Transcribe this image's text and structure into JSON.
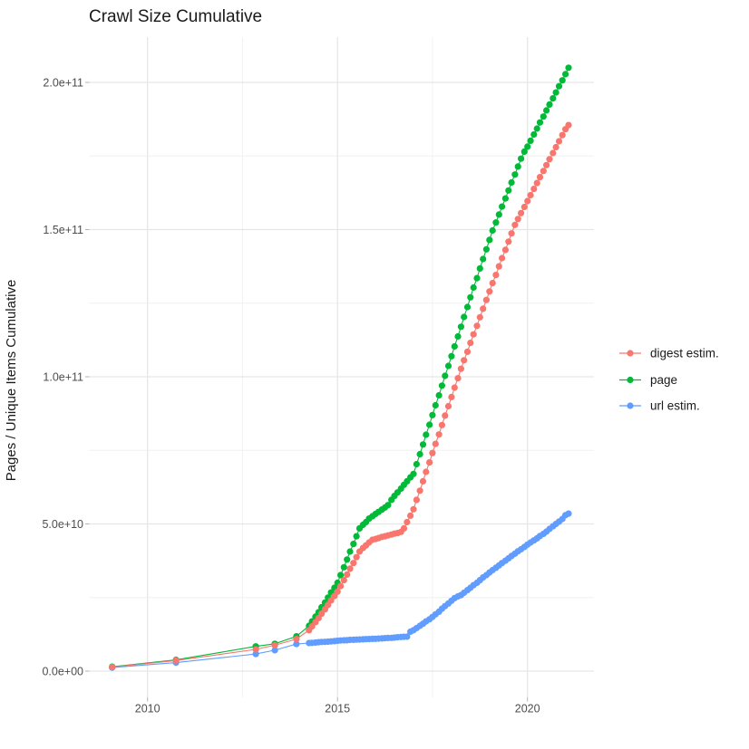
{
  "title": "Crawl Size Cumulative",
  "y_axis": {
    "title": "Pages / Unique Items Cumulative",
    "tick_labels": [
      "0.0e+00",
      "5.0e+10",
      "1.0e+11",
      "1.5e+11",
      "2.0e+11"
    ]
  },
  "x_axis": {
    "tick_labels": [
      "2010",
      "2015",
      "2020"
    ]
  },
  "legend": {
    "items": [
      {
        "label": "digest estim.",
        "color": "#F8766D"
      },
      {
        "label": "page",
        "color": "#00BA38"
      },
      {
        "label": "url estim.",
        "color": "#619CFF"
      }
    ]
  },
  "chart_data": {
    "type": "line",
    "marker": "point",
    "title": "Crawl Size Cumulative",
    "xlabel": "",
    "ylabel": "Pages / Unique Items Cumulative",
    "value_scale": 1000000000.0,
    "xlim": [
      2008.4,
      2021.8
    ],
    "ylim_1e9": [
      -10,
      215
    ],
    "grid": true,
    "legend_position": "right",
    "x_ticks": {
      "major": [
        2010,
        2015,
        2020
      ],
      "minor": [
        2012.5,
        2017.5
      ],
      "labels": [
        "2010",
        "2015",
        "2020"
      ]
    },
    "y_ticks": {
      "major_1e9": [
        0,
        50,
        100,
        150,
        200
      ],
      "minor_1e9": [
        25,
        75,
        125,
        175
      ],
      "labels": [
        "0.0e+00",
        "5.0e+10",
        "1.0e+11",
        "1.5e+11",
        "2.0e+11"
      ]
    },
    "series": [
      {
        "name": "digest estim.",
        "color": "#F8766D",
        "points_year_value1e9": [
          [
            2009.07,
            1.4
          ],
          [
            2010.75,
            3.6
          ],
          [
            2012.85,
            7.4
          ],
          [
            2013.35,
            8.8
          ],
          [
            2013.92,
            10.9
          ],
          [
            2014.25,
            13.9
          ],
          [
            2014.33,
            15.2
          ],
          [
            2014.42,
            16.6
          ],
          [
            2014.5,
            18
          ],
          [
            2014.58,
            19.5
          ],
          [
            2014.67,
            21
          ],
          [
            2014.75,
            22.5
          ],
          [
            2014.83,
            24
          ],
          [
            2014.92,
            25.5
          ],
          [
            2015.0,
            27
          ],
          [
            2015.08,
            28.9
          ],
          [
            2015.17,
            30.9
          ],
          [
            2015.25,
            32.8
          ],
          [
            2015.33,
            34.8
          ],
          [
            2015.42,
            36.7
          ],
          [
            2015.5,
            38.7
          ],
          [
            2015.58,
            40.6
          ],
          [
            2015.67,
            41.8
          ],
          [
            2015.75,
            42.7
          ],
          [
            2015.83,
            43.7
          ],
          [
            2015.92,
            44.6
          ],
          [
            2016.0,
            44.9
          ],
          [
            2016.08,
            45.2
          ],
          [
            2016.17,
            45.6
          ],
          [
            2016.25,
            45.8
          ],
          [
            2016.33,
            46.1
          ],
          [
            2016.42,
            46.4
          ],
          [
            2016.5,
            46.7
          ],
          [
            2016.58,
            46.9
          ],
          [
            2016.67,
            47.3
          ],
          [
            2016.75,
            48.5
          ],
          [
            2016.83,
            50.6
          ],
          [
            2016.92,
            52.8
          ],
          [
            2017.0,
            55
          ],
          [
            2017.08,
            58.2
          ],
          [
            2017.17,
            61.3
          ],
          [
            2017.25,
            64.5
          ],
          [
            2017.33,
            67.7
          ],
          [
            2017.42,
            70.9
          ],
          [
            2017.5,
            74.1
          ],
          [
            2017.58,
            77.2
          ],
          [
            2017.67,
            80.4
          ],
          [
            2017.75,
            83.6
          ],
          [
            2017.83,
            86.8
          ],
          [
            2017.92,
            90
          ],
          [
            2018.0,
            93.1
          ],
          [
            2018.08,
            96.3
          ],
          [
            2018.17,
            99.5
          ],
          [
            2018.25,
            102.7
          ],
          [
            2018.33,
            105.6
          ],
          [
            2018.42,
            108.5
          ],
          [
            2018.5,
            111.5
          ],
          [
            2018.58,
            114.4
          ],
          [
            2018.67,
            117.3
          ],
          [
            2018.75,
            120.2
          ],
          [
            2018.83,
            123.1
          ],
          [
            2018.92,
            126.1
          ],
          [
            2019.0,
            129
          ],
          [
            2019.08,
            131.8
          ],
          [
            2019.17,
            134.6
          ],
          [
            2019.25,
            137.5
          ],
          [
            2019.33,
            140.3
          ],
          [
            2019.42,
            143.1
          ],
          [
            2019.5,
            145.9
          ],
          [
            2019.58,
            148.7
          ],
          [
            2019.67,
            151.6
          ],
          [
            2019.75,
            153.6
          ],
          [
            2019.83,
            155.6
          ],
          [
            2019.92,
            157.7
          ],
          [
            2020.0,
            159.7
          ],
          [
            2020.08,
            161.7
          ],
          [
            2020.17,
            163.8
          ],
          [
            2020.25,
            165.8
          ],
          [
            2020.33,
            167.8
          ],
          [
            2020.42,
            169.9
          ],
          [
            2020.5,
            171.9
          ],
          [
            2020.58,
            173.9
          ],
          [
            2020.67,
            176
          ],
          [
            2020.75,
            178
          ],
          [
            2020.83,
            180
          ],
          [
            2020.92,
            182.1
          ],
          [
            2021.0,
            184.1
          ],
          [
            2021.08,
            185.5
          ]
        ]
      },
      {
        "name": "page",
        "color": "#00BA38",
        "points_year_value1e9": [
          [
            2009.07,
            1.5
          ],
          [
            2010.75,
            3.8
          ],
          [
            2012.85,
            8.4
          ],
          [
            2013.35,
            9.3
          ],
          [
            2013.92,
            11.8
          ],
          [
            2014.25,
            15.4
          ],
          [
            2014.33,
            16.9
          ],
          [
            2014.42,
            18.5
          ],
          [
            2014.5,
            20
          ],
          [
            2014.58,
            21.7
          ],
          [
            2014.67,
            23.3
          ],
          [
            2014.75,
            25
          ],
          [
            2014.83,
            26.7
          ],
          [
            2014.92,
            28.3
          ],
          [
            2015.0,
            30
          ],
          [
            2015.08,
            32.6
          ],
          [
            2015.17,
            35.3
          ],
          [
            2015.25,
            37.9
          ],
          [
            2015.33,
            40.6
          ],
          [
            2015.42,
            43.2
          ],
          [
            2015.5,
            45.8
          ],
          [
            2015.58,
            48.5
          ],
          [
            2015.67,
            49.7
          ],
          [
            2015.75,
            50.6
          ],
          [
            2015.83,
            51.8
          ],
          [
            2015.92,
            52.6
          ],
          [
            2016.0,
            53.4
          ],
          [
            2016.08,
            54.1
          ],
          [
            2016.17,
            54.9
          ],
          [
            2016.25,
            55.6
          ],
          [
            2016.33,
            56.4
          ],
          [
            2016.42,
            58.2
          ],
          [
            2016.5,
            59.5
          ],
          [
            2016.58,
            60.7
          ],
          [
            2016.67,
            62
          ],
          [
            2016.75,
            63.3
          ],
          [
            2016.83,
            64.5
          ],
          [
            2016.92,
            65.8
          ],
          [
            2017.0,
            67
          ],
          [
            2017.08,
            70.3
          ],
          [
            2017.17,
            73.7
          ],
          [
            2017.25,
            77
          ],
          [
            2017.33,
            80.3
          ],
          [
            2017.42,
            83.7
          ],
          [
            2017.5,
            87
          ],
          [
            2017.58,
            90.3
          ],
          [
            2017.67,
            93.7
          ],
          [
            2017.75,
            97
          ],
          [
            2017.83,
            100.3
          ],
          [
            2017.92,
            103.7
          ],
          [
            2018.0,
            107
          ],
          [
            2018.08,
            110.3
          ],
          [
            2018.17,
            113.7
          ],
          [
            2018.25,
            117
          ],
          [
            2018.33,
            120.3
          ],
          [
            2018.42,
            123.7
          ],
          [
            2018.5,
            127
          ],
          [
            2018.58,
            130.3
          ],
          [
            2018.67,
            133.5
          ],
          [
            2018.75,
            136.8
          ],
          [
            2018.83,
            140
          ],
          [
            2018.92,
            143.3
          ],
          [
            2019.0,
            146.5
          ],
          [
            2019.08,
            149.7
          ],
          [
            2019.17,
            152.4
          ],
          [
            2019.25,
            155.1
          ],
          [
            2019.33,
            157.8
          ],
          [
            2019.42,
            160.6
          ],
          [
            2019.5,
            163.3
          ],
          [
            2019.58,
            166
          ],
          [
            2019.67,
            168.7
          ],
          [
            2019.75,
            171.4
          ],
          [
            2019.83,
            174.1
          ],
          [
            2019.92,
            176.5
          ],
          [
            2020.0,
            178.2
          ],
          [
            2020.08,
            180.2
          ],
          [
            2020.17,
            182.3
          ],
          [
            2020.25,
            184.3
          ],
          [
            2020.33,
            186.4
          ],
          [
            2020.42,
            188.4
          ],
          [
            2020.5,
            190.5
          ],
          [
            2020.58,
            192.5
          ],
          [
            2020.67,
            194.6
          ],
          [
            2020.75,
            196.6
          ],
          [
            2020.83,
            198.7
          ],
          [
            2020.92,
            200.7
          ],
          [
            2021.0,
            202.8
          ],
          [
            2021.08,
            205
          ]
        ]
      },
      {
        "name": "url estim.",
        "color": "#619CFF",
        "points_year_value1e9": [
          [
            2009.07,
            1.2
          ],
          [
            2010.75,
            2.9
          ],
          [
            2012.85,
            5.8
          ],
          [
            2013.35,
            7.1
          ],
          [
            2013.92,
            9.2
          ],
          [
            2014.25,
            9.55
          ],
          [
            2014.33,
            9.6
          ],
          [
            2014.42,
            9.7
          ],
          [
            2014.5,
            9.8
          ],
          [
            2014.58,
            9.9
          ],
          [
            2014.67,
            9.95
          ],
          [
            2014.75,
            10
          ],
          [
            2014.83,
            10.1
          ],
          [
            2014.92,
            10.2
          ],
          [
            2015.0,
            10.3
          ],
          [
            2015.08,
            10.4
          ],
          [
            2015.17,
            10.45
          ],
          [
            2015.25,
            10.5
          ],
          [
            2015.33,
            10.6
          ],
          [
            2015.42,
            10.65
          ],
          [
            2015.5,
            10.7
          ],
          [
            2015.58,
            10.75
          ],
          [
            2015.67,
            10.8
          ],
          [
            2015.75,
            10.85
          ],
          [
            2015.83,
            10.9
          ],
          [
            2015.92,
            10.95
          ],
          [
            2016.0,
            11
          ],
          [
            2016.08,
            11.05
          ],
          [
            2016.17,
            11.1
          ],
          [
            2016.25,
            11.2
          ],
          [
            2016.33,
            11.25
          ],
          [
            2016.42,
            11.3
          ],
          [
            2016.5,
            11.4
          ],
          [
            2016.58,
            11.5
          ],
          [
            2016.67,
            11.6
          ],
          [
            2016.75,
            11.65
          ],
          [
            2016.83,
            11.7
          ],
          [
            2016.92,
            13.4
          ],
          [
            2017.0,
            13.9
          ],
          [
            2017.08,
            14.6
          ],
          [
            2017.17,
            15.4
          ],
          [
            2017.25,
            16.1
          ],
          [
            2017.33,
            16.9
          ],
          [
            2017.42,
            17.6
          ],
          [
            2017.5,
            18.4
          ],
          [
            2017.58,
            19.3
          ],
          [
            2017.67,
            20.2
          ],
          [
            2017.75,
            21.2
          ],
          [
            2017.83,
            22.1
          ],
          [
            2017.92,
            23
          ],
          [
            2018.0,
            23.9
          ],
          [
            2018.08,
            24.8
          ],
          [
            2018.17,
            25.4
          ],
          [
            2018.25,
            25.8
          ],
          [
            2018.33,
            26.6
          ],
          [
            2018.42,
            27.5
          ],
          [
            2018.5,
            28.3
          ],
          [
            2018.58,
            29.2
          ],
          [
            2018.67,
            30
          ],
          [
            2018.75,
            30.9
          ],
          [
            2018.83,
            31.8
          ],
          [
            2018.92,
            32.6
          ],
          [
            2019.0,
            33.5
          ],
          [
            2019.08,
            34.3
          ],
          [
            2019.17,
            35.1
          ],
          [
            2019.25,
            35.9
          ],
          [
            2019.33,
            36.7
          ],
          [
            2019.42,
            37.5
          ],
          [
            2019.5,
            38.3
          ],
          [
            2019.58,
            39.1
          ],
          [
            2019.67,
            39.9
          ],
          [
            2019.75,
            40.7
          ],
          [
            2019.83,
            41.4
          ],
          [
            2019.92,
            42.2
          ],
          [
            2020.0,
            43
          ],
          [
            2020.08,
            43.7
          ],
          [
            2020.17,
            44.4
          ],
          [
            2020.25,
            45.1
          ],
          [
            2020.33,
            45.9
          ],
          [
            2020.42,
            46.6
          ],
          [
            2020.5,
            47.4
          ],
          [
            2020.58,
            48.3
          ],
          [
            2020.67,
            49.2
          ],
          [
            2020.75,
            50
          ],
          [
            2020.83,
            50.8
          ],
          [
            2020.92,
            51.7
          ],
          [
            2021.0,
            53
          ],
          [
            2021.08,
            53.5
          ]
        ]
      }
    ]
  }
}
